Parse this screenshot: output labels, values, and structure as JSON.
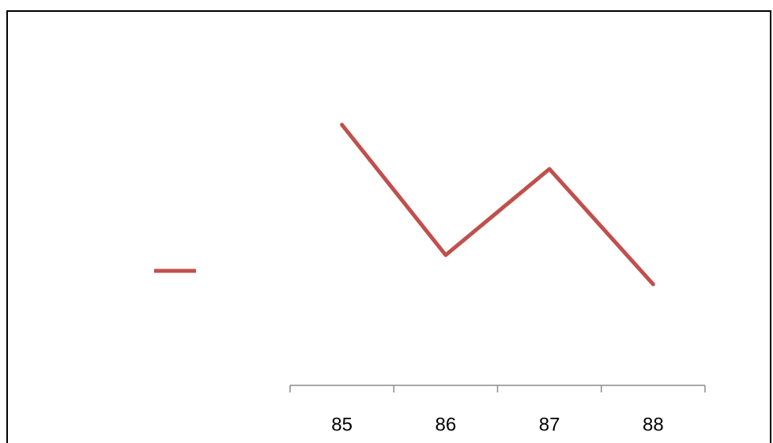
{
  "chart_data": {
    "type": "line",
    "categories": [
      "85",
      "86",
      "87",
      "88"
    ],
    "series": [
      {
        "color": "#c0504d",
        "values": [
          3.3,
          1.65,
          2.74,
          1.28
        ]
      }
    ],
    "ylim": [
      0,
      4.5
    ]
  }
}
